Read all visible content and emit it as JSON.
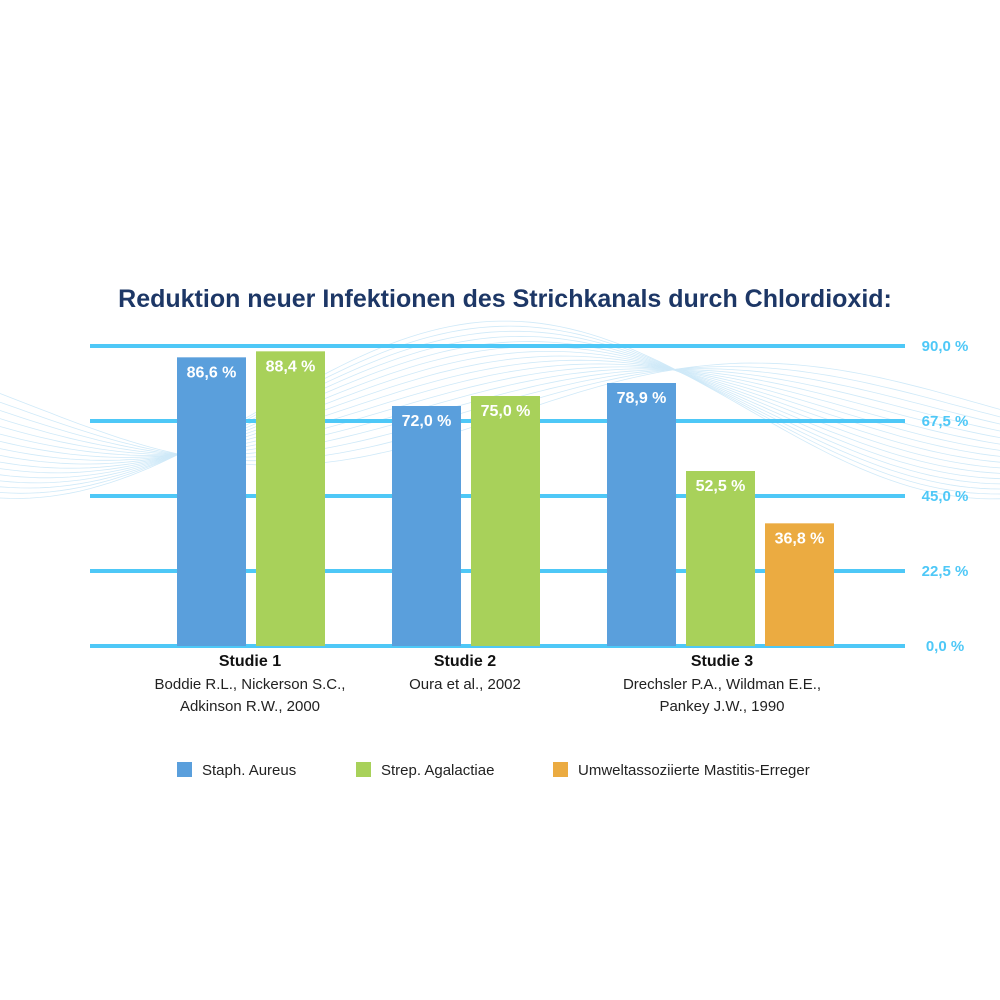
{
  "chart_data": {
    "type": "bar",
    "title": "Reduktion neuer Infektionen des Strichkanals durch Chlordioxid:",
    "categories": [
      "Studie 1",
      "Studie 2",
      "Studie 3"
    ],
    "category_references": [
      [
        "Boddie R.L., Nickerson S.C.,",
        "Adkinson R.W., 2000"
      ],
      [
        "Oura et al., 2002"
      ],
      [
        "Drechsler P.A., Wildman E.E.,",
        "Pankey J.W., 1990"
      ]
    ],
    "series": [
      {
        "name": "Staph. Aureus",
        "color": "#5a9fdc",
        "values": [
          86.6,
          72.0,
          78.9
        ],
        "labels": [
          "86,6 %",
          "72,0 %",
          "78,9 %"
        ]
      },
      {
        "name": "Strep. Agalactiae",
        "color": "#a8d15a",
        "values": [
          88.4,
          75.0,
          52.5
        ],
        "labels": [
          "88,4 %",
          "75,0 %",
          "52,5 %"
        ]
      },
      {
        "name": "Umweltassoziierte Mastitis-Erreger",
        "color": "#ebab41",
        "values": [
          null,
          null,
          36.8
        ],
        "labels": [
          null,
          null,
          "36,8 %"
        ]
      }
    ],
    "ylim": [
      0,
      90
    ],
    "yticks": [
      0,
      22.5,
      45,
      67.5,
      90
    ],
    "ytick_labels": [
      "0,0 %",
      "22,5 %",
      "45,0 %",
      "67,5 %",
      "90,0 %"
    ],
    "y_axis_side": "right",
    "grid": true,
    "gridline_color": "#4ec8f7",
    "legend_position": "bottom"
  }
}
